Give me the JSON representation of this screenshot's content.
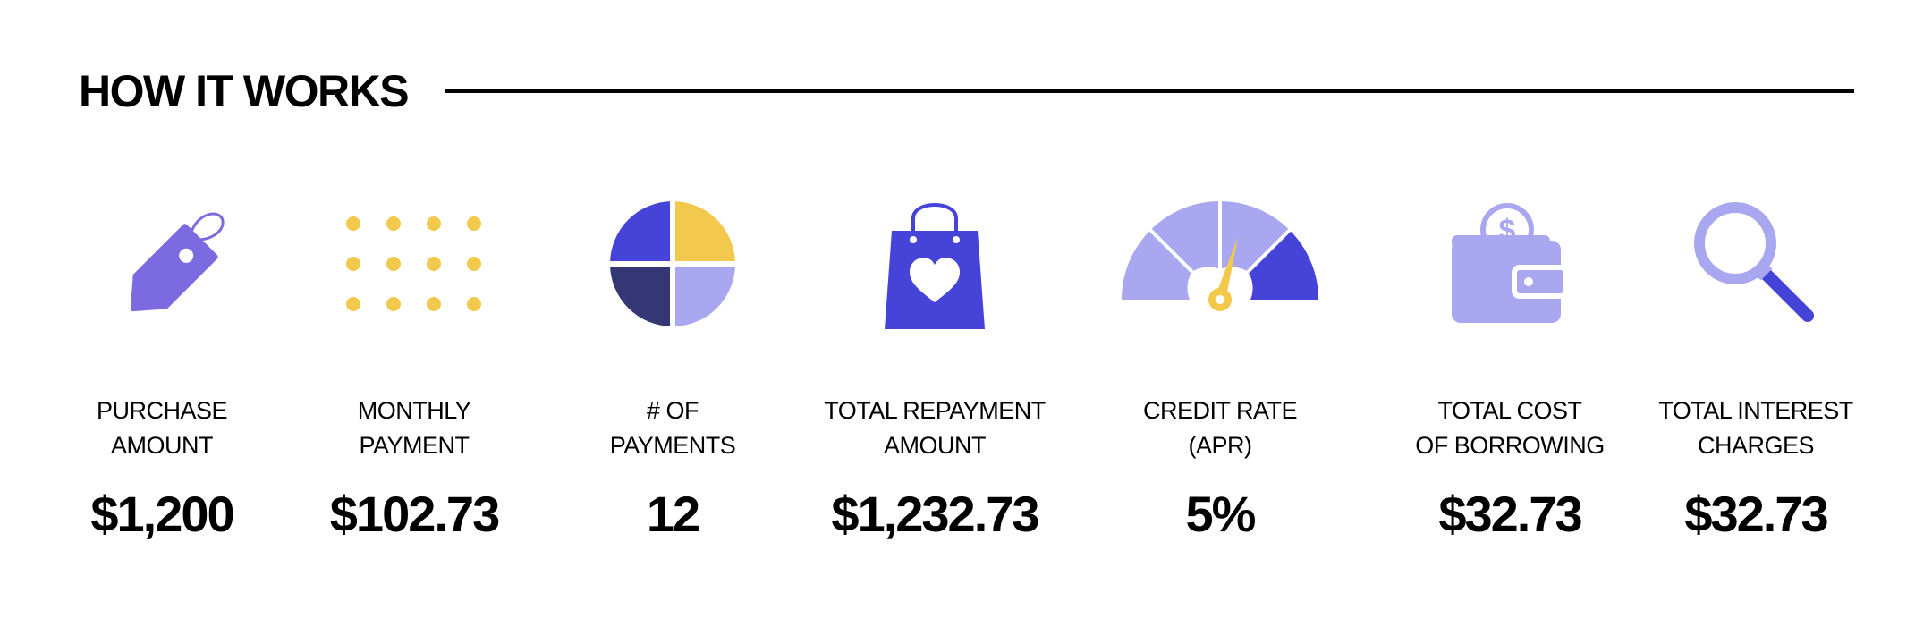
{
  "header": {
    "title": "HOW IT WORKS"
  },
  "colors": {
    "purple": "#7C6BE0",
    "yellow": "#F2C94C",
    "blue": "#4543D8",
    "lavender": "#A9A7F0",
    "navy": "#353674"
  },
  "items": [
    {
      "icon": "price-tag-icon",
      "label_line1": "PURCHASE",
      "label_line2": "AMOUNT",
      "value": "$1,200"
    },
    {
      "icon": "dot-grid-icon",
      "label_line1": "MONTHLY",
      "label_line2": "PAYMENT",
      "value": "$102.73"
    },
    {
      "icon": "pie-chart-icon",
      "label_line1": "# OF",
      "label_line2": "PAYMENTS",
      "value": "12"
    },
    {
      "icon": "shopping-bag-heart-icon",
      "label_line1": "TOTAL REPAYMENT",
      "label_line2": "AMOUNT",
      "value": "$1,232.73"
    },
    {
      "icon": "gauge-icon",
      "label_line1": "CREDIT RATE",
      "label_line2": "(APR)",
      "value": "5%"
    },
    {
      "icon": "wallet-coin-icon",
      "label_line1": "TOTAL COST",
      "label_line2": "OF BORROWING",
      "value": "$32.73"
    },
    {
      "icon": "magnifying-glass-icon",
      "label_line1": "TOTAL INTEREST",
      "label_line2": "CHARGES",
      "value": "$32.73"
    }
  ]
}
